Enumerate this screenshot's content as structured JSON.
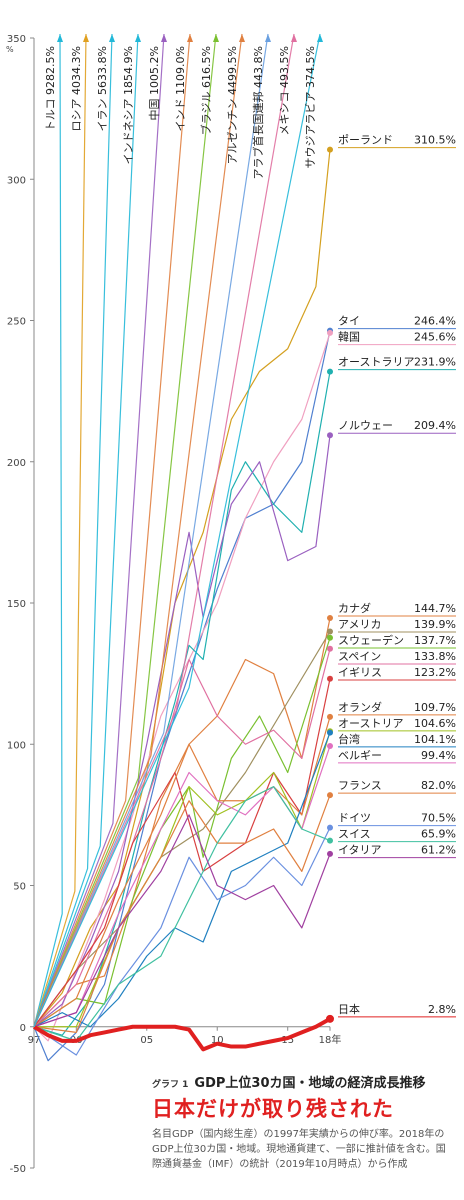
{
  "chart_data": {
    "type": "line",
    "y_unit": "%",
    "ylim": [
      -50,
      350
    ],
    "y_ticks": [
      -50,
      0,
      50,
      100,
      150,
      200,
      250,
      300,
      350
    ],
    "xlim": [
      1997,
      2018
    ],
    "x_ticks": [
      {
        "year": 1997,
        "label": "97"
      },
      {
        "year": 2000,
        "label": "00"
      },
      {
        "year": 2005,
        "label": "05"
      },
      {
        "year": 2010,
        "label": "10"
      },
      {
        "year": 2015,
        "label": "15"
      },
      {
        "year": 2018,
        "label": "18年"
      }
    ],
    "grid": false,
    "offscale_series": [
      {
        "name": "トルコ",
        "value": "9282.5%",
        "color": "#22b8d8"
      },
      {
        "name": "ロシア",
        "value": "4034.3%",
        "color": "#e0a020"
      },
      {
        "name": "イラン",
        "value": "5633.8%",
        "color": "#22b8d8"
      },
      {
        "name": "インドネシア",
        "value": "1854.9%",
        "color": "#22b8d8"
      },
      {
        "name": "中国",
        "value": "1005.2%",
        "color": "#9a60c0"
      },
      {
        "name": "インド",
        "value": "1109.0%",
        "color": "#e08040"
      },
      {
        "name": "ブラジル",
        "value": "616.5%",
        "color": "#7ac030"
      },
      {
        "name": "アルゼンチン",
        "value": "4499.5%",
        "color": "#e08040"
      },
      {
        "name": "アラブ首長国連邦",
        "value": "443.8%",
        "color": "#6aa0e0"
      },
      {
        "name": "メキシコ",
        "value": "493.5%",
        "color": "#e070a0"
      },
      {
        "name": "サウジアラビア",
        "value": "374.5%",
        "color": "#22b8d8"
      }
    ],
    "series": [
      {
        "name": "ポーランド",
        "value_label": "310.5%",
        "color": "#d4a020",
        "values": [
          [
            1997,
            0
          ],
          [
            1999,
            12
          ],
          [
            2001,
            35
          ],
          [
            2003,
            50
          ],
          [
            2005,
            90
          ],
          [
            2007,
            150
          ],
          [
            2009,
            175
          ],
          [
            2011,
            215
          ],
          [
            2013,
            232
          ],
          [
            2015,
            240
          ],
          [
            2017,
            262
          ],
          [
            2018,
            310.5
          ]
        ]
      },
      {
        "name": "タイ",
        "value_label": "246.4%",
        "color": "#5080d0",
        "values": [
          [
            1997,
            0
          ],
          [
            1998,
            -12
          ],
          [
            2000,
            -2
          ],
          [
            2002,
            15
          ],
          [
            2004,
            55
          ],
          [
            2006,
            95
          ],
          [
            2008,
            125
          ],
          [
            2010,
            155
          ],
          [
            2012,
            180
          ],
          [
            2014,
            185
          ],
          [
            2016,
            200
          ],
          [
            2018,
            246.4
          ]
        ]
      },
      {
        "name": "韓国",
        "value_label": "245.6%",
        "color": "#f0a0c0",
        "values": [
          [
            1997,
            0
          ],
          [
            1998,
            -5
          ],
          [
            2000,
            20
          ],
          [
            2002,
            45
          ],
          [
            2004,
            75
          ],
          [
            2006,
            110
          ],
          [
            2008,
            130
          ],
          [
            2010,
            150
          ],
          [
            2012,
            180
          ],
          [
            2014,
            200
          ],
          [
            2016,
            215
          ],
          [
            2018,
            245.6
          ]
        ]
      },
      {
        "name": "オーストラリア",
        "value_label": "231.9%",
        "color": "#20b0b0",
        "values": [
          [
            1997,
            0
          ],
          [
            1999,
            -3
          ],
          [
            2001,
            10
          ],
          [
            2003,
            40
          ],
          [
            2005,
            80
          ],
          [
            2007,
            115
          ],
          [
            2008,
            135
          ],
          [
            2009,
            130
          ],
          [
            2011,
            190
          ],
          [
            2012,
            200
          ],
          [
            2014,
            185
          ],
          [
            2016,
            175
          ],
          [
            2018,
            231.9
          ]
        ]
      },
      {
        "name": "ノルウェー",
        "value_label": "209.4%",
        "color": "#9a60c0",
        "values": [
          [
            1997,
            0
          ],
          [
            1999,
            8
          ],
          [
            2001,
            30
          ],
          [
            2003,
            55
          ],
          [
            2005,
            100
          ],
          [
            2007,
            150
          ],
          [
            2008,
            175
          ],
          [
            2009,
            145
          ],
          [
            2011,
            185
          ],
          [
            2013,
            200
          ],
          [
            2015,
            165
          ],
          [
            2017,
            170
          ],
          [
            2018,
            209.4
          ]
        ]
      },
      {
        "name": "カナダ",
        "value_label": "144.7%",
        "color": "#e08040",
        "values": [
          [
            1997,
            0
          ],
          [
            2000,
            15
          ],
          [
            2002,
            18
          ],
          [
            2004,
            45
          ],
          [
            2006,
            80
          ],
          [
            2008,
            100
          ],
          [
            2010,
            110
          ],
          [
            2012,
            130
          ],
          [
            2014,
            125
          ],
          [
            2016,
            95
          ],
          [
            2018,
            144.7
          ]
        ]
      },
      {
        "name": "アメリカ",
        "value_label": "139.9%",
        "color": "#a09060",
        "values": [
          [
            1997,
            0
          ],
          [
            2000,
            20
          ],
          [
            2003,
            35
          ],
          [
            2006,
            60
          ],
          [
            2009,
            70
          ],
          [
            2012,
            90
          ],
          [
            2015,
            115
          ],
          [
            2018,
            139.9
          ]
        ]
      },
      {
        "name": "スウェーデン",
        "value_label": "137.7%",
        "color": "#7ac030",
        "values": [
          [
            1997,
            0
          ],
          [
            2000,
            10
          ],
          [
            2002,
            8
          ],
          [
            2004,
            45
          ],
          [
            2006,
            70
          ],
          [
            2008,
            85
          ],
          [
            2009,
            60
          ],
          [
            2011,
            95
          ],
          [
            2013,
            110
          ],
          [
            2015,
            90
          ],
          [
            2018,
            137.7
          ]
        ]
      },
      {
        "name": "スペイン",
        "value_label": "133.8%",
        "color": "#e070a0",
        "values": [
          [
            1997,
            0
          ],
          [
            2000,
            15
          ],
          [
            2003,
            50
          ],
          [
            2006,
            95
          ],
          [
            2008,
            130
          ],
          [
            2010,
            110
          ],
          [
            2012,
            100
          ],
          [
            2014,
            105
          ],
          [
            2016,
            95
          ],
          [
            2018,
            133.8
          ]
        ]
      },
      {
        "name": "イギリス",
        "value_label": "123.2%",
        "color": "#d84040",
        "values": [
          [
            1997,
            0
          ],
          [
            2000,
            20
          ],
          [
            2002,
            35
          ],
          [
            2004,
            65
          ],
          [
            2007,
            90
          ],
          [
            2009,
            55
          ],
          [
            2012,
            65
          ],
          [
            2014,
            90
          ],
          [
            2016,
            75
          ],
          [
            2018,
            123.2
          ]
        ]
      },
      {
        "name": "オランダ",
        "value_label": "109.7%",
        "color": "#e08040",
        "values": [
          [
            1997,
            0
          ],
          [
            2000,
            10
          ],
          [
            2003,
            45
          ],
          [
            2006,
            75
          ],
          [
            2008,
            100
          ],
          [
            2010,
            80
          ],
          [
            2012,
            80
          ],
          [
            2014,
            85
          ],
          [
            2016,
            75
          ],
          [
            2018,
            109.7
          ]
        ]
      },
      {
        "name": "オーストリア",
        "value_label": "104.6%",
        "color": "#a0c020",
        "values": [
          [
            1997,
            0
          ],
          [
            2000,
            0
          ],
          [
            2003,
            35
          ],
          [
            2006,
            60
          ],
          [
            2008,
            85
          ],
          [
            2010,
            75
          ],
          [
            2012,
            80
          ],
          [
            2014,
            90
          ],
          [
            2016,
            70
          ],
          [
            2018,
            104.6
          ]
        ]
      },
      {
        "name": "台湾",
        "value_label": "104.1%",
        "color": "#2080c0",
        "values": [
          [
            1997,
            0
          ],
          [
            1999,
            5
          ],
          [
            2001,
            0
          ],
          [
            2003,
            10
          ],
          [
            2005,
            25
          ],
          [
            2007,
            35
          ],
          [
            2009,
            30
          ],
          [
            2011,
            55
          ],
          [
            2013,
            60
          ],
          [
            2015,
            65
          ],
          [
            2018,
            104.1
          ]
        ]
      },
      {
        "name": "ベルギー",
        "value_label": "99.4%",
        "color": "#e070c0",
        "values": [
          [
            1997,
            0
          ],
          [
            2000,
            5
          ],
          [
            2003,
            40
          ],
          [
            2006,
            70
          ],
          [
            2008,
            90
          ],
          [
            2010,
            80
          ],
          [
            2012,
            75
          ],
          [
            2014,
            85
          ],
          [
            2016,
            70
          ],
          [
            2018,
            99.4
          ]
        ]
      },
      {
        "name": "フランス",
        "value_label": "82.0%",
        "color": "#e08040",
        "values": [
          [
            1997,
            0
          ],
          [
            2000,
            -2
          ],
          [
            2003,
            35
          ],
          [
            2006,
            60
          ],
          [
            2008,
            80
          ],
          [
            2010,
            65
          ],
          [
            2012,
            65
          ],
          [
            2014,
            70
          ],
          [
            2016,
            55
          ],
          [
            2018,
            82.0
          ]
        ]
      },
      {
        "name": "ドイツ",
        "value_label": "70.5%",
        "color": "#6a90e0",
        "values": [
          [
            1997,
            0
          ],
          [
            2000,
            -10
          ],
          [
            2003,
            15
          ],
          [
            2006,
            35
          ],
          [
            2008,
            60
          ],
          [
            2010,
            45
          ],
          [
            2012,
            50
          ],
          [
            2014,
            60
          ],
          [
            2016,
            50
          ],
          [
            2018,
            70.5
          ]
        ]
      },
      {
        "name": "スイス",
        "value_label": "65.9%",
        "color": "#40c0a0",
        "values": [
          [
            1997,
            0
          ],
          [
            2000,
            -5
          ],
          [
            2003,
            15
          ],
          [
            2006,
            25
          ],
          [
            2008,
            45
          ],
          [
            2010,
            65
          ],
          [
            2012,
            80
          ],
          [
            2014,
            85
          ],
          [
            2016,
            70
          ],
          [
            2018,
            65.9
          ]
        ]
      },
      {
        "name": "イタリア",
        "value_label": "61.2%",
        "color": "#a040a0",
        "values": [
          [
            1997,
            0
          ],
          [
            2000,
            5
          ],
          [
            2003,
            35
          ],
          [
            2006,
            55
          ],
          [
            2008,
            75
          ],
          [
            2010,
            50
          ],
          [
            2012,
            45
          ],
          [
            2014,
            50
          ],
          [
            2016,
            35
          ],
          [
            2018,
            61.2
          ]
        ]
      },
      {
        "name": "日本",
        "value_label": "2.8%",
        "color": "#e02020",
        "emphasis": true,
        "values": [
          [
            1997,
            0
          ],
          [
            1998,
            -3
          ],
          [
            1999,
            -5
          ],
          [
            2000,
            -5
          ],
          [
            2001,
            -3
          ],
          [
            2002,
            -2
          ],
          [
            2003,
            -1
          ],
          [
            2004,
            0
          ],
          [
            2005,
            0
          ],
          [
            2006,
            0
          ],
          [
            2007,
            0
          ],
          [
            2008,
            -1
          ],
          [
            2009,
            -8
          ],
          [
            2010,
            -6
          ],
          [
            2011,
            -7
          ],
          [
            2012,
            -7
          ],
          [
            2013,
            -6
          ],
          [
            2014,
            -5
          ],
          [
            2015,
            -4
          ],
          [
            2016,
            -2
          ],
          [
            2017,
            0
          ],
          [
            2018,
            2.8
          ]
        ]
      }
    ],
    "caption": {
      "tag": "グラフ 1",
      "heading": "GDP上位30カ国・地域の経済成長推移",
      "title": "日本だけが取り残された",
      "body": "名目GDP（国内総生産）の1997年実績からの伸び率。2018年のGDP上位30カ国・地域。現地通貨建て、一部に推計値を含む。国際通貨基金（IMF）の統計（2019年10月時点）から作成"
    }
  }
}
